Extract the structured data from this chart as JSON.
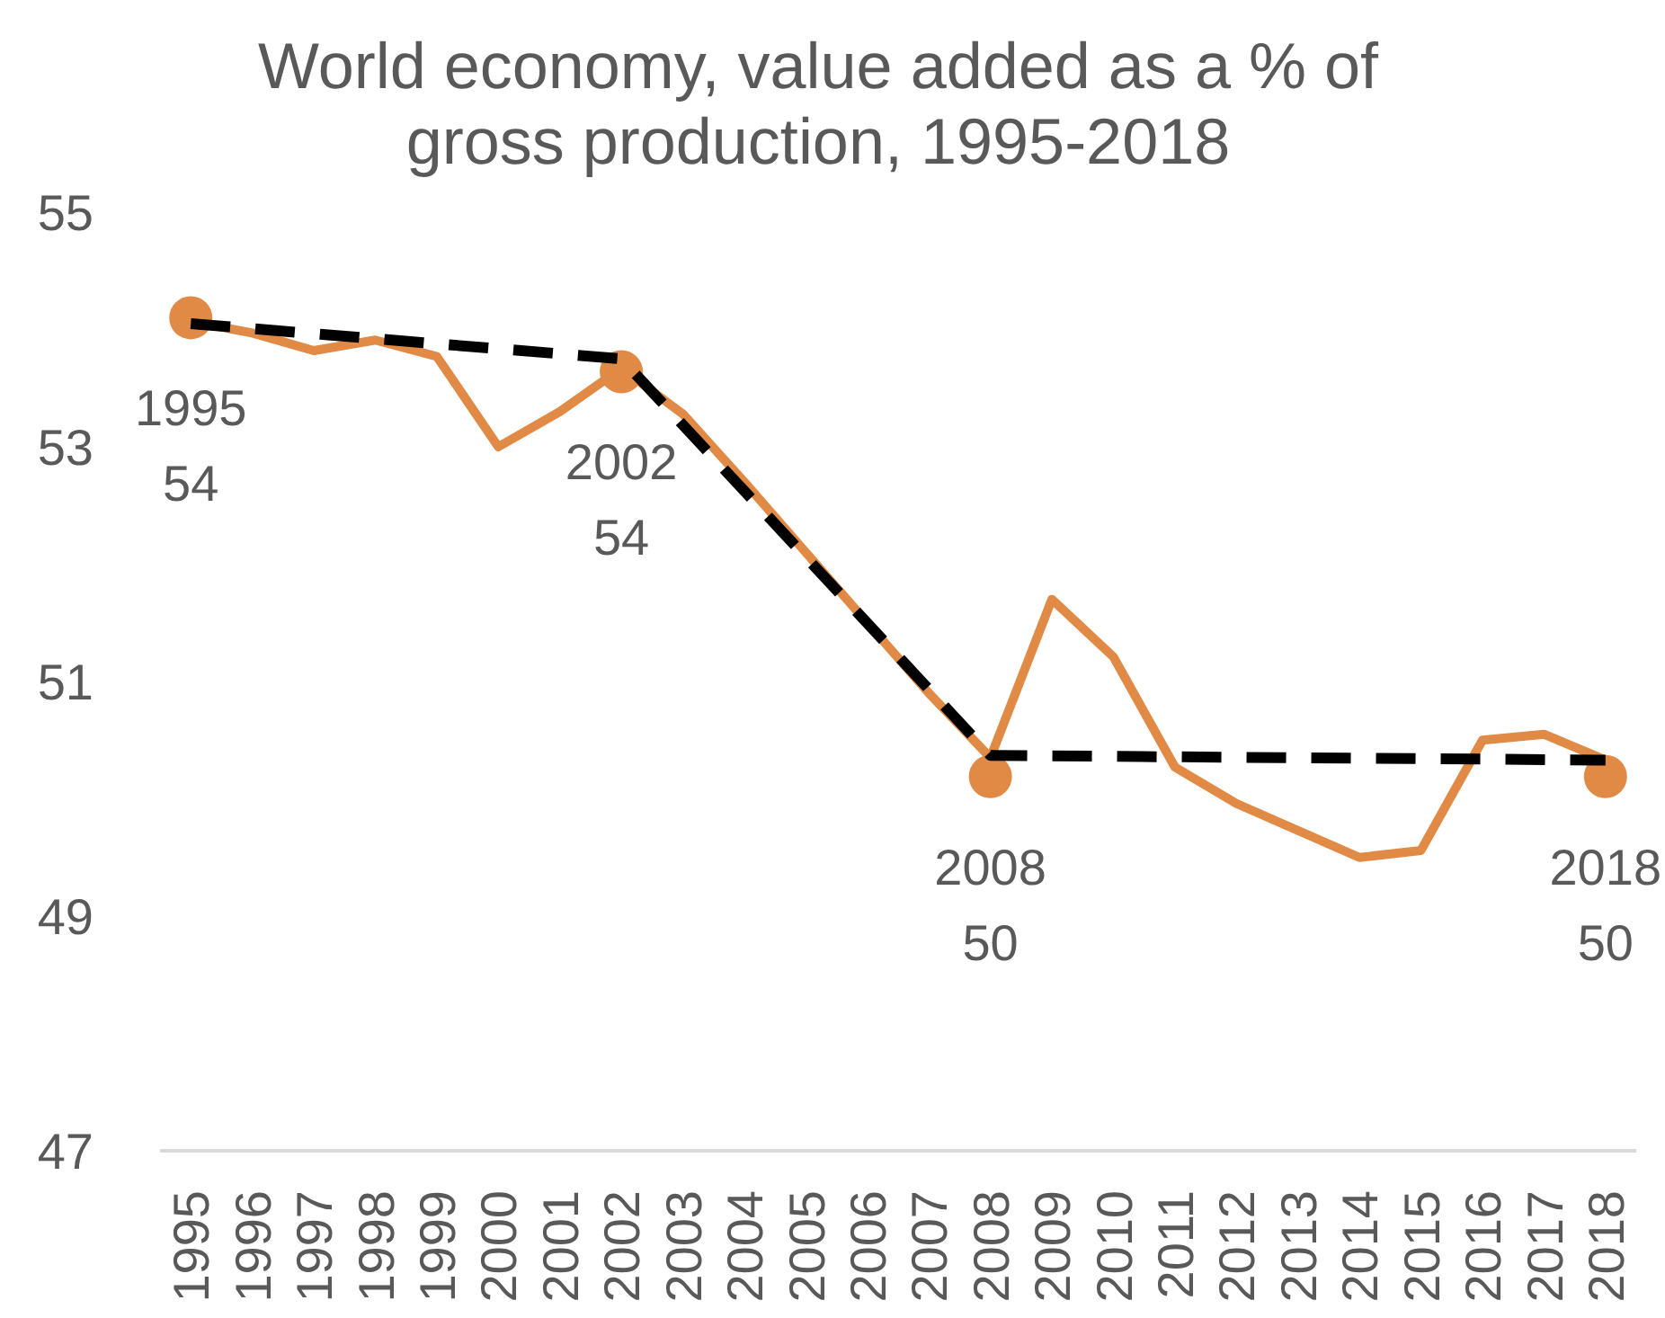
{
  "chart_data": {
    "type": "line",
    "title": "World economy, value added as a % of gross production, 1995-2018",
    "x": [
      1995,
      1996,
      1997,
      1998,
      1999,
      2000,
      2001,
      2002,
      2003,
      2004,
      2005,
      2006,
      2007,
      2008,
      2009,
      2010,
      2011,
      2012,
      2013,
      2014,
      2015,
      2016,
      2017,
      2018
    ],
    "xlim": [
      1994.5,
      2018.5
    ],
    "xticks": [
      1995,
      1996,
      1997,
      1998,
      1999,
      2000,
      2001,
      2002,
      2003,
      2004,
      2005,
      2006,
      2007,
      2008,
      2009,
      2010,
      2011,
      2012,
      2013,
      2014,
      2015,
      2016,
      2017,
      2018
    ],
    "ylim": [
      47,
      55
    ],
    "yticks": [
      47,
      49,
      51,
      53,
      55
    ],
    "grid": false,
    "marker": "none",
    "series": [
      {
        "color": "#e08a45",
        "values": [
          54.07,
          53.97,
          53.82,
          53.91,
          53.77,
          53.0,
          53.3,
          53.67,
          53.28,
          52.7,
          52.1,
          51.5,
          50.9,
          50.35,
          51.7,
          51.21,
          50.27,
          49.96,
          49.73,
          49.5,
          49.56,
          50.5,
          50.55,
          50.33
        ]
      },
      {
        "type": "scatter",
        "color": "#e08a45",
        "marker": "circle",
        "x": [
          1995,
          2002,
          2008,
          2018
        ],
        "values": [
          54.1,
          53.64,
          50.19,
          50.19
        ],
        "value_labels": [
          "1995\n54",
          "2002\n54",
          "2008\n50",
          "2018\n50"
        ]
      },
      {
        "type": "line",
        "color": "#000000",
        "line_style": "dashed",
        "x": [
          1995,
          2002,
          2008,
          2018
        ],
        "values": [
          54.05,
          53.75,
          50.37,
          50.33
        ]
      }
    ]
  }
}
